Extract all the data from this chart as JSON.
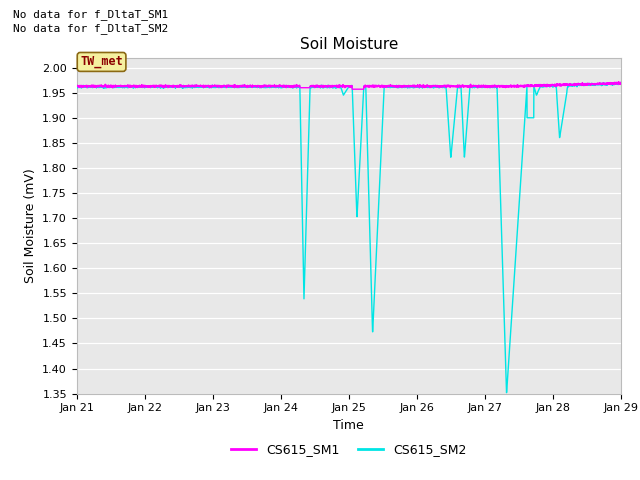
{
  "title": "Soil Moisture",
  "xlabel": "Time",
  "ylabel": "Soil Moisture (mV)",
  "ylim": [
    1.35,
    2.02
  ],
  "yticks": [
    1.35,
    1.4,
    1.45,
    1.5,
    1.55,
    1.6,
    1.65,
    1.7,
    1.75,
    1.8,
    1.85,
    1.9,
    1.95,
    2.0
  ],
  "annotations": [
    "No data for f_DltaT_SM1",
    "No data for f_DltaT_SM2"
  ],
  "annotation_box_label": "TW_met",
  "annotation_box_color": "#f5f0a0",
  "annotation_box_text_color": "#8b0000",
  "annotation_box_border_color": "#8b6914",
  "sm1_color": "#ff00ff",
  "sm2_color": "#00e5e5",
  "legend_label_sm1": "CS615_SM1",
  "legend_label_sm2": "CS615_SM2",
  "background_color": "#e8e8e8",
  "title_fontsize": 11,
  "axis_label_fontsize": 9,
  "tick_fontsize": 8,
  "annot_fontsize": 8,
  "x_start_day": 21,
  "x_end_day": 29,
  "x_tick_days": [
    21,
    22,
    23,
    24,
    25,
    26,
    27,
    28,
    29
  ]
}
